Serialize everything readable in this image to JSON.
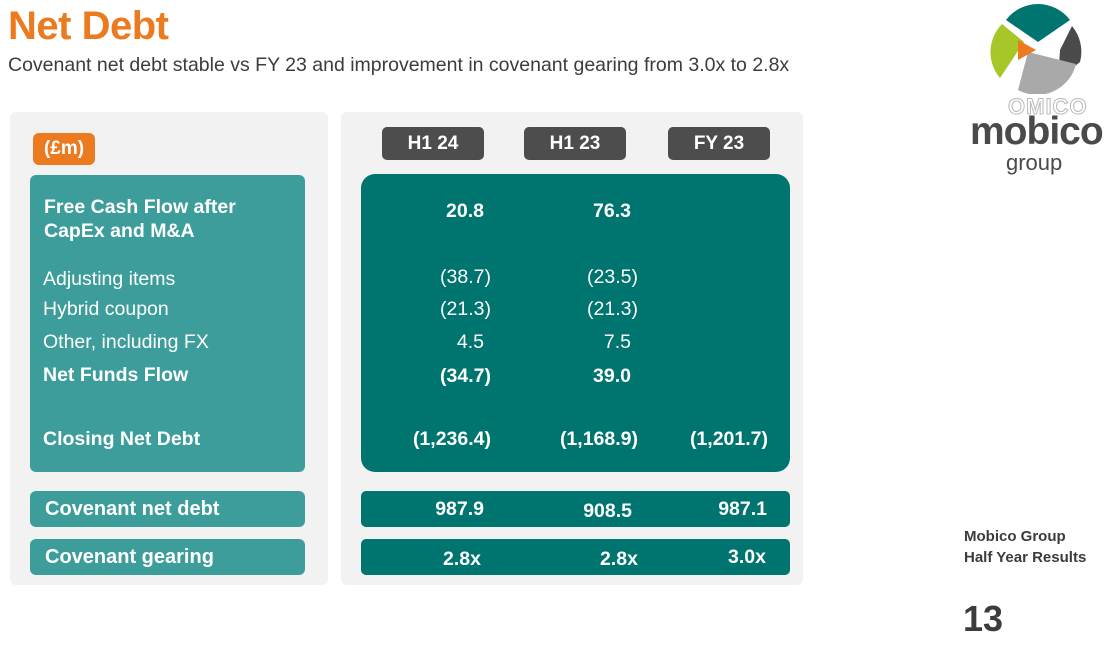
{
  "title": "Net Debt",
  "subtitle": "Covenant net debt stable vs FY 23 and improvement in covenant gearing from 3.0x to 2.8x",
  "unit": "(£m)",
  "columns": [
    "H1 24",
    "H1 23",
    "FY 23"
  ],
  "rows": [
    {
      "label": "Free Cash Flow after CapEx and M&A",
      "values": [
        "20.8",
        "76.3",
        ""
      ]
    },
    {
      "label": "Adjusting items",
      "values": [
        "(38.7)",
        "(23.5)",
        ""
      ]
    },
    {
      "label": "Hybrid coupon",
      "values": [
        "(21.3)",
        "(21.3)",
        ""
      ]
    },
    {
      "label": "Other, including FX",
      "values": [
        "4.5",
        "7.5",
        ""
      ]
    },
    {
      "label": "Net Funds Flow",
      "values": [
        "(34.7)",
        "39.0",
        ""
      ]
    },
    {
      "label": "Closing Net Debt",
      "values": [
        "(1,236.4)",
        "(1,168.9)",
        "(1,201.7)"
      ]
    }
  ],
  "covenant_net_debt": {
    "label": "Covenant net debt",
    "values": [
      "987.9",
      "908.5",
      "987.1"
    ]
  },
  "covenant_gearing": {
    "label": "Covenant gearing",
    "values": [
      "2.8x",
      "2.8x",
      "3.0x"
    ]
  },
  "logo": {
    "ghost_text": "OMICO",
    "word": "mobico",
    "sub": "group"
  },
  "footer": {
    "line1": "Mobico Group",
    "line2": "Half Year Results"
  },
  "page_number": "13",
  "colors": {
    "orange": "#ec7a1e",
    "teal_dark": "#007570",
    "teal_light": "#3d9d9b",
    "header_grey": "#4d4d4d",
    "panel_bg": "#f2f2f2"
  }
}
